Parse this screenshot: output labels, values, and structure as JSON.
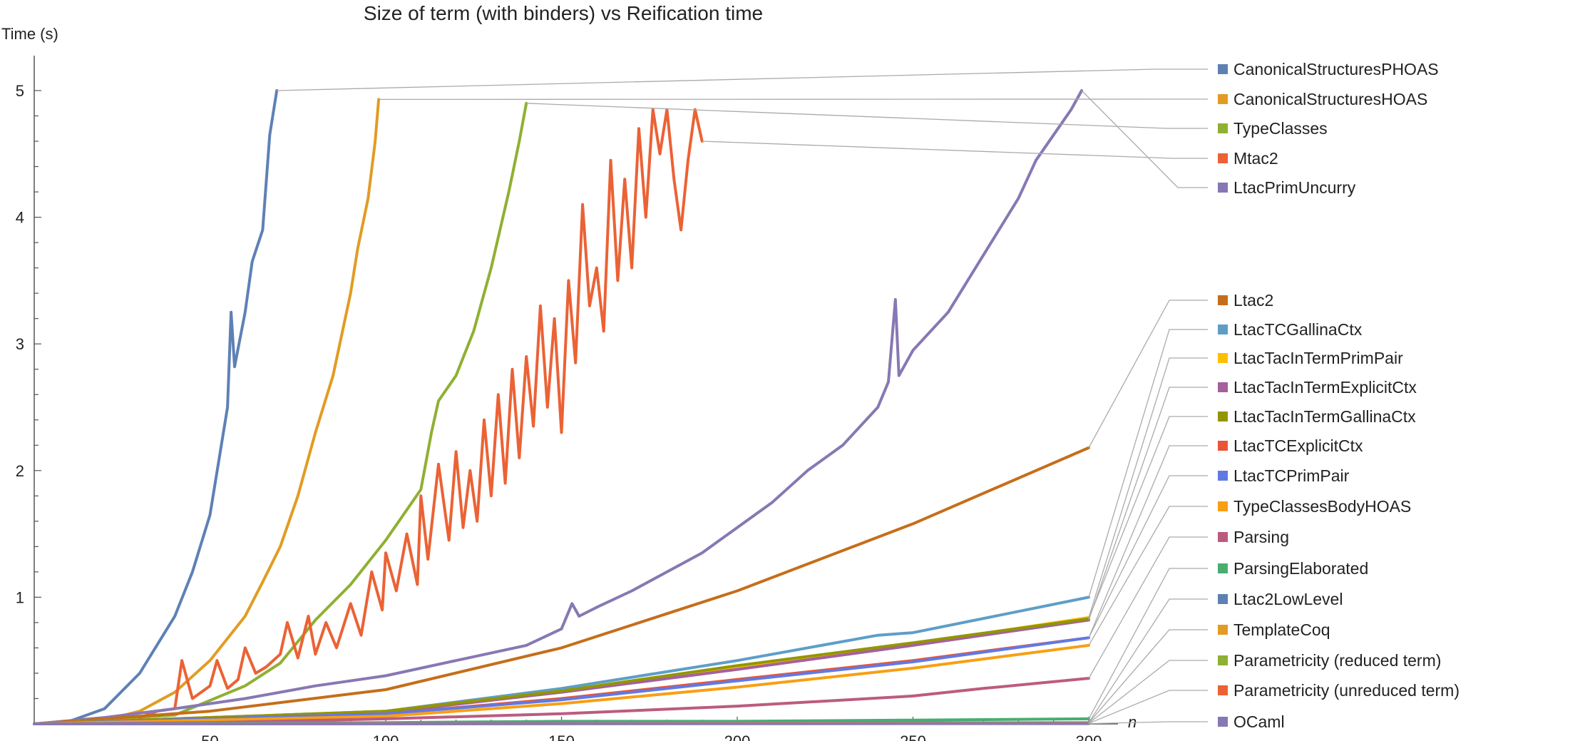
{
  "chart_data": {
    "type": "line",
    "title": "Size of term (with binders) vs Reification time",
    "ylabel": "Time (s)",
    "xlabel": "n",
    "xlim": [
      0,
      308
    ],
    "ylim": [
      0,
      5.25
    ],
    "xticks": [
      50,
      100,
      150,
      200,
      250,
      300
    ],
    "yticks": [
      1,
      2,
      3,
      4,
      5
    ],
    "grid": false,
    "legend_placement": "right",
    "series": [
      {
        "name": "CanonicalStructuresPHOAS",
        "color": "#5E81B5",
        "points": [
          [
            0,
            0
          ],
          [
            10,
            0.02
          ],
          [
            20,
            0.12
          ],
          [
            30,
            0.4
          ],
          [
            40,
            0.85
          ],
          [
            45,
            1.2
          ],
          [
            50,
            1.65
          ],
          [
            55,
            2.5
          ],
          [
            56,
            3.25
          ],
          [
            57,
            2.82
          ],
          [
            60,
            3.25
          ],
          [
            62,
            3.65
          ],
          [
            65,
            3.9
          ],
          [
            67,
            4.65
          ],
          [
            69,
            5.0
          ]
        ]
      },
      {
        "name": "CanonicalStructuresHOAS",
        "color": "#E19C24",
        "points": [
          [
            0,
            0
          ],
          [
            20,
            0.03
          ],
          [
            30,
            0.1
          ],
          [
            40,
            0.25
          ],
          [
            50,
            0.5
          ],
          [
            60,
            0.85
          ],
          [
            65,
            1.12
          ],
          [
            70,
            1.4
          ],
          [
            75,
            1.8
          ],
          [
            80,
            2.3
          ],
          [
            85,
            2.75
          ],
          [
            90,
            3.4
          ],
          [
            92,
            3.75
          ],
          [
            95,
            4.15
          ],
          [
            97,
            4.6
          ],
          [
            98,
            4.93
          ]
        ]
      },
      {
        "name": "TypeClasses",
        "color": "#8FB032",
        "points": [
          [
            0,
            0
          ],
          [
            40,
            0.07
          ],
          [
            60,
            0.3
          ],
          [
            70,
            0.48
          ],
          [
            75,
            0.65
          ],
          [
            80,
            0.82
          ],
          [
            90,
            1.1
          ],
          [
            100,
            1.45
          ],
          [
            110,
            1.85
          ],
          [
            113,
            2.3
          ],
          [
            115,
            2.55
          ],
          [
            120,
            2.75
          ],
          [
            125,
            3.1
          ],
          [
            130,
            3.6
          ],
          [
            135,
            4.2
          ],
          [
            138,
            4.6
          ],
          [
            140,
            4.9
          ]
        ]
      },
      {
        "name": "Mtac2",
        "color": "#EB6235",
        "points": [
          [
            30,
            0.05
          ],
          [
            35,
            0.1
          ],
          [
            40,
            0.12
          ],
          [
            42,
            0.5
          ],
          [
            45,
            0.2
          ],
          [
            50,
            0.3
          ],
          [
            52,
            0.5
          ],
          [
            55,
            0.28
          ],
          [
            58,
            0.35
          ],
          [
            60,
            0.6
          ],
          [
            63,
            0.4
          ],
          [
            66,
            0.45
          ],
          [
            70,
            0.55
          ],
          [
            72,
            0.8
          ],
          [
            75,
            0.52
          ],
          [
            78,
            0.85
          ],
          [
            80,
            0.55
          ],
          [
            83,
            0.8
          ],
          [
            86,
            0.6
          ],
          [
            90,
            0.95
          ],
          [
            93,
            0.7
          ],
          [
            96,
            1.2
          ],
          [
            99,
            0.9
          ],
          [
            100,
            1.35
          ],
          [
            103,
            1.05
          ],
          [
            106,
            1.5
          ],
          [
            109,
            1.1
          ],
          [
            110,
            1.8
          ],
          [
            112,
            1.3
          ],
          [
            115,
            2.05
          ],
          [
            118,
            1.45
          ],
          [
            120,
            2.15
          ],
          [
            122,
            1.55
          ],
          [
            124,
            2.0
          ],
          [
            126,
            1.6
          ],
          [
            128,
            2.4
          ],
          [
            130,
            1.8
          ],
          [
            132,
            2.6
          ],
          [
            134,
            1.9
          ],
          [
            136,
            2.8
          ],
          [
            138,
            2.1
          ],
          [
            140,
            2.9
          ],
          [
            142,
            2.35
          ],
          [
            144,
            3.3
          ],
          [
            146,
            2.5
          ],
          [
            148,
            3.2
          ],
          [
            150,
            2.3
          ],
          [
            152,
            3.5
          ],
          [
            154,
            2.85
          ],
          [
            156,
            4.1
          ],
          [
            158,
            3.3
          ],
          [
            160,
            3.6
          ],
          [
            162,
            3.1
          ],
          [
            164,
            4.45
          ],
          [
            166,
            3.5
          ],
          [
            168,
            4.3
          ],
          [
            170,
            3.6
          ],
          [
            172,
            4.7
          ],
          [
            174,
            4.0
          ],
          [
            176,
            4.85
          ],
          [
            178,
            4.5
          ],
          [
            180,
            4.85
          ],
          [
            182,
            4.3
          ],
          [
            184,
            3.9
          ],
          [
            186,
            4.45
          ],
          [
            188,
            4.85
          ],
          [
            190,
            4.6
          ]
        ]
      },
      {
        "name": "LtacPrimUncurry",
        "color": "#8778B3",
        "points": [
          [
            0,
            0
          ],
          [
            20,
            0.05
          ],
          [
            40,
            0.12
          ],
          [
            60,
            0.2
          ],
          [
            80,
            0.3
          ],
          [
            100,
            0.38
          ],
          [
            120,
            0.5
          ],
          [
            140,
            0.62
          ],
          [
            150,
            0.75
          ],
          [
            153,
            0.95
          ],
          [
            155,
            0.85
          ],
          [
            160,
            0.92
          ],
          [
            170,
            1.05
          ],
          [
            180,
            1.2
          ],
          [
            190,
            1.35
          ],
          [
            200,
            1.55
          ],
          [
            210,
            1.75
          ],
          [
            220,
            2.0
          ],
          [
            230,
            2.2
          ],
          [
            240,
            2.5
          ],
          [
            243,
            2.7
          ],
          [
            245,
            3.35
          ],
          [
            246,
            2.75
          ],
          [
            250,
            2.95
          ],
          [
            260,
            3.25
          ],
          [
            270,
            3.7
          ],
          [
            280,
            4.15
          ],
          [
            285,
            4.45
          ],
          [
            290,
            4.65
          ],
          [
            295,
            4.85
          ],
          [
            298,
            5.0
          ]
        ]
      },
      {
        "name": "Ltac2",
        "color": "#C56E1A",
        "points": [
          [
            0,
            0
          ],
          [
            50,
            0.1
          ],
          [
            100,
            0.27
          ],
          [
            150,
            0.6
          ],
          [
            200,
            1.05
          ],
          [
            250,
            1.58
          ],
          [
            300,
            2.18
          ]
        ]
      },
      {
        "name": "LtacTCGallinaCtx",
        "color": "#5D9EC7",
        "points": [
          [
            0,
            0
          ],
          [
            100,
            0.1
          ],
          [
            150,
            0.28
          ],
          [
            200,
            0.5
          ],
          [
            240,
            0.7
          ],
          [
            250,
            0.72
          ],
          [
            300,
            1.0
          ]
        ]
      },
      {
        "name": "LtacTacInTermPrimPair",
        "color": "#FFBF00",
        "points": [
          [
            0,
            0
          ],
          [
            100,
            0.1
          ],
          [
            150,
            0.26
          ],
          [
            200,
            0.45
          ],
          [
            250,
            0.63
          ],
          [
            300,
            0.84
          ]
        ]
      },
      {
        "name": "LtacTacInTermExplicitCtx",
        "color": "#A5609D",
        "points": [
          [
            0,
            0
          ],
          [
            100,
            0.09
          ],
          [
            150,
            0.25
          ],
          [
            200,
            0.43
          ],
          [
            250,
            0.62
          ],
          [
            300,
            0.82
          ]
        ]
      },
      {
        "name": "LtacTacInTermGallinaCtx",
        "color": "#929600",
        "points": [
          [
            0,
            0
          ],
          [
            100,
            0.1
          ],
          [
            150,
            0.26
          ],
          [
            200,
            0.46
          ],
          [
            250,
            0.64
          ],
          [
            300,
            0.83
          ]
        ]
      },
      {
        "name": "LtacTCExplicitCtx",
        "color": "#E95536",
        "points": [
          [
            0,
            0
          ],
          [
            100,
            0.08
          ],
          [
            150,
            0.2
          ],
          [
            200,
            0.35
          ],
          [
            250,
            0.5
          ],
          [
            300,
            0.68
          ]
        ]
      },
      {
        "name": "LtacTCPrimPair",
        "color": "#6279E3",
        "points": [
          [
            0,
            0
          ],
          [
            100,
            0.08
          ],
          [
            150,
            0.19
          ],
          [
            200,
            0.34
          ],
          [
            250,
            0.49
          ],
          [
            300,
            0.68
          ]
        ]
      },
      {
        "name": "TypeClassesBodyHOAS",
        "color": "#F89F13",
        "points": [
          [
            0,
            0
          ],
          [
            100,
            0.06
          ],
          [
            150,
            0.16
          ],
          [
            200,
            0.29
          ],
          [
            250,
            0.44
          ],
          [
            300,
            0.62
          ]
        ]
      },
      {
        "name": "Parsing",
        "color": "#BC5B80",
        "points": [
          [
            0,
            0
          ],
          [
            50,
            0.01
          ],
          [
            100,
            0.04
          ],
          [
            150,
            0.08
          ],
          [
            200,
            0.14
          ],
          [
            250,
            0.22
          ],
          [
            270,
            0.28
          ],
          [
            300,
            0.36
          ]
        ]
      },
      {
        "name": "ParsingElaborated",
        "color": "#47AE70",
        "points": [
          [
            0,
            0
          ],
          [
            100,
            0.01
          ],
          [
            150,
            0.02
          ],
          [
            200,
            0.02
          ],
          [
            250,
            0.03
          ],
          [
            300,
            0.04
          ]
        ]
      },
      {
        "name": "Ltac2LowLevel",
        "color": "#5E81B5",
        "points": [
          [
            0,
            0
          ],
          [
            300,
            0.01
          ]
        ]
      },
      {
        "name": "TemplateCoq",
        "color": "#E19C24",
        "points": [
          [
            0,
            0
          ],
          [
            300,
            0.008
          ]
        ]
      },
      {
        "name": "Parametricity (reduced term)",
        "color": "#8FB032",
        "points": [
          [
            0,
            0
          ],
          [
            300,
            0.005
          ]
        ]
      },
      {
        "name": "Parametricity (unreduced term)",
        "color": "#EB6235",
        "points": [
          [
            0,
            0
          ],
          [
            300,
            0.004
          ]
        ]
      },
      {
        "name": "OCaml",
        "color": "#8778B3",
        "points": [
          [
            0,
            0
          ],
          [
            300,
            0.002
          ]
        ]
      }
    ]
  }
}
